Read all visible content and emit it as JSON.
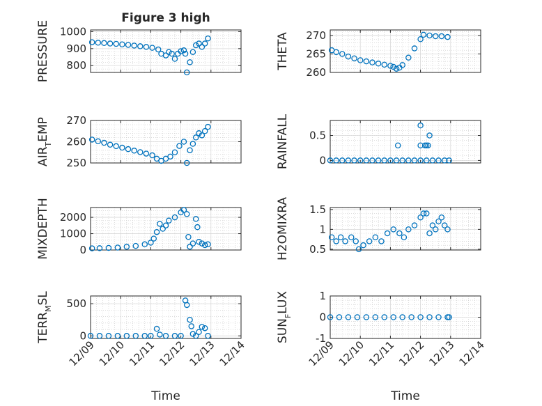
{
  "figure_title": "Figure 3 high",
  "colors": {
    "marker": "#0072BD",
    "axis": "#262626",
    "grid": "#c8c8c8"
  },
  "chart_data": [
    {
      "type": "scatter",
      "title": "Figure 3 high",
      "ylabel": {
        "base": "PRESSURE"
      },
      "xlabel": "",
      "xlim": [
        0,
        5
      ],
      "xticks": [
        0,
        1,
        2,
        3,
        4,
        5
      ],
      "xticklabels": [
        "12/09",
        "12/10",
        "12/11",
        "12/12",
        "12/13",
        "12/14"
      ],
      "ylim": [
        760,
        1010
      ],
      "yticks": [
        800,
        900,
        1000
      ],
      "yticklabels": [
        "800",
        "900",
        "1000"
      ],
      "grid": true,
      "points": [
        [
          0.05,
          938
        ],
        [
          0.25,
          935
        ],
        [
          0.45,
          933
        ],
        [
          0.65,
          930
        ],
        [
          0.85,
          928
        ],
        [
          1.05,
          925
        ],
        [
          1.25,
          922
        ],
        [
          1.45,
          918
        ],
        [
          1.65,
          914
        ],
        [
          1.85,
          910
        ],
        [
          2.05,
          905
        ],
        [
          2.25,
          895
        ],
        [
          2.35,
          870
        ],
        [
          2.5,
          860
        ],
        [
          2.6,
          880
        ],
        [
          2.7,
          870
        ],
        [
          2.8,
          840
        ],
        [
          2.9,
          870
        ],
        [
          3.0,
          885
        ],
        [
          3.1,
          890
        ],
        [
          3.15,
          870
        ],
        [
          3.2,
          760
        ],
        [
          3.3,
          820
        ],
        [
          3.4,
          880
        ],
        [
          3.5,
          920
        ],
        [
          3.6,
          930
        ],
        [
          3.7,
          910
        ],
        [
          3.8,
          930
        ],
        [
          3.9,
          960
        ]
      ]
    },
    {
      "type": "scatter",
      "title": "",
      "ylabel": {
        "base": "THETA"
      },
      "xlabel": "",
      "xlim": [
        0,
        5
      ],
      "xticks": [
        0,
        1,
        2,
        3,
        4,
        5
      ],
      "xticklabels": [
        "12/09",
        "12/10",
        "12/11",
        "12/12",
        "12/13",
        "12/14"
      ],
      "ylim": [
        260,
        271.5
      ],
      "yticks": [
        260,
        265,
        270
      ],
      "yticklabels": [
        "260",
        "265",
        "270"
      ],
      "grid": true,
      "points": [
        [
          0.05,
          266
        ],
        [
          0.2,
          265.5
        ],
        [
          0.4,
          265
        ],
        [
          0.6,
          264.3
        ],
        [
          0.8,
          263.8
        ],
        [
          1.0,
          263.3
        ],
        [
          1.2,
          263
        ],
        [
          1.4,
          262.7
        ],
        [
          1.6,
          262.4
        ],
        [
          1.8,
          262.1
        ],
        [
          2.0,
          261.8
        ],
        [
          2.1,
          261.5
        ],
        [
          2.2,
          261
        ],
        [
          2.3,
          261.3
        ],
        [
          2.4,
          262
        ],
        [
          2.6,
          264
        ],
        [
          2.8,
          266.5
        ],
        [
          3.0,
          269
        ],
        [
          3.1,
          270.2
        ],
        [
          3.3,
          270
        ],
        [
          3.5,
          269.8
        ],
        [
          3.7,
          269.8
        ],
        [
          3.9,
          269.6
        ]
      ]
    },
    {
      "type": "scatter",
      "title": "",
      "ylabel": {
        "base": "AIR",
        "sub": "T",
        "rest": "EMP"
      },
      "xlabel": "",
      "xlim": [
        0,
        5
      ],
      "xticks": [
        0,
        1,
        2,
        3,
        4,
        5
      ],
      "xticklabels": [
        "12/09",
        "12/10",
        "12/11",
        "12/12",
        "12/13",
        "12/14"
      ],
      "ylim": [
        250,
        270
      ],
      "yticks": [
        250,
        260,
        270
      ],
      "yticklabels": [
        "250",
        "260",
        "270"
      ],
      "grid": true,
      "points": [
        [
          0.05,
          261
        ],
        [
          0.25,
          260.2
        ],
        [
          0.45,
          259.5
        ],
        [
          0.65,
          258.6
        ],
        [
          0.85,
          257.9
        ],
        [
          1.05,
          257.2
        ],
        [
          1.25,
          256.5
        ],
        [
          1.45,
          255.8
        ],
        [
          1.65,
          255.1
        ],
        [
          1.85,
          254.4
        ],
        [
          2.05,
          253.6
        ],
        [
          2.2,
          252
        ],
        [
          2.35,
          251
        ],
        [
          2.5,
          252
        ],
        [
          2.65,
          253
        ],
        [
          2.8,
          255
        ],
        [
          2.95,
          258
        ],
        [
          3.1,
          260
        ],
        [
          3.2,
          250
        ],
        [
          3.3,
          256
        ],
        [
          3.4,
          259
        ],
        [
          3.5,
          262
        ],
        [
          3.6,
          264
        ],
        [
          3.7,
          263
        ],
        [
          3.8,
          265
        ],
        [
          3.9,
          267
        ]
      ]
    },
    {
      "type": "scatter",
      "title": "",
      "ylabel": {
        "base": "RAINFALL"
      },
      "xlabel": "",
      "xlim": [
        0,
        5
      ],
      "xticks": [
        0,
        1,
        2,
        3,
        4,
        5
      ],
      "xticklabels": [
        "12/09",
        "12/10",
        "12/11",
        "12/12",
        "12/13",
        "12/14"
      ],
      "ylim": [
        -0.05,
        0.8
      ],
      "yticks": [
        0,
        0.5
      ],
      "yticklabels": [
        "0",
        "0.5"
      ],
      "grid": true,
      "points": [
        [
          0.0,
          0
        ],
        [
          0.2,
          0
        ],
        [
          0.4,
          0
        ],
        [
          0.6,
          0
        ],
        [
          0.8,
          0
        ],
        [
          1.0,
          0
        ],
        [
          1.2,
          0
        ],
        [
          1.4,
          0
        ],
        [
          1.6,
          0
        ],
        [
          1.8,
          0
        ],
        [
          2.0,
          0
        ],
        [
          2.2,
          0
        ],
        [
          2.4,
          0
        ],
        [
          2.6,
          0
        ],
        [
          2.8,
          0
        ],
        [
          3.0,
          0
        ],
        [
          3.2,
          0
        ],
        [
          3.4,
          0
        ],
        [
          3.6,
          0
        ],
        [
          3.8,
          0
        ],
        [
          3.95,
          0
        ],
        [
          2.25,
          0.3
        ],
        [
          3.0,
          0.7
        ],
        [
          3.0,
          0.3
        ],
        [
          3.15,
          0.3
        ],
        [
          3.25,
          0.3
        ],
        [
          3.3,
          0.5
        ],
        [
          3.2,
          0.3
        ]
      ]
    },
    {
      "type": "scatter",
      "title": "",
      "ylabel": {
        "base": "MIXDEPTH"
      },
      "xlabel": "",
      "xlim": [
        0,
        5
      ],
      "xticks": [
        0,
        1,
        2,
        3,
        4,
        5
      ],
      "xticklabels": [
        "12/09",
        "12/10",
        "12/11",
        "12/12",
        "12/13",
        "12/14"
      ],
      "ylim": [
        0,
        2600
      ],
      "yticks": [
        0,
        1000,
        2000
      ],
      "yticklabels": [
        "0",
        "1000",
        "2000"
      ],
      "grid": true,
      "points": [
        [
          0.05,
          100
        ],
        [
          0.3,
          110
        ],
        [
          0.6,
          130
        ],
        [
          0.9,
          150
        ],
        [
          1.2,
          200
        ],
        [
          1.5,
          250
        ],
        [
          1.8,
          350
        ],
        [
          2.0,
          450
        ],
        [
          2.1,
          700
        ],
        [
          2.2,
          1100
        ],
        [
          2.3,
          1600
        ],
        [
          2.4,
          1300
        ],
        [
          2.5,
          1500
        ],
        [
          2.6,
          1800
        ],
        [
          2.8,
          2000
        ],
        [
          3.0,
          2300
        ],
        [
          3.1,
          2450
        ],
        [
          3.2,
          2200
        ],
        [
          3.25,
          800
        ],
        [
          3.3,
          200
        ],
        [
          3.4,
          400
        ],
        [
          3.5,
          1900
        ],
        [
          3.55,
          1400
        ],
        [
          3.6,
          500
        ],
        [
          3.7,
          400
        ],
        [
          3.8,
          300
        ],
        [
          3.9,
          350
        ]
      ]
    },
    {
      "type": "scatter",
      "title": "",
      "ylabel": {
        "base": "H2OMIXRA"
      },
      "xlabel": "",
      "xlim": [
        0,
        5
      ],
      "xticks": [
        0,
        1,
        2,
        3,
        4,
        5
      ],
      "xticklabels": [
        "12/09",
        "12/10",
        "12/11",
        "12/12",
        "12/13",
        "12/14"
      ],
      "ylim": [
        0.48,
        1.55
      ],
      "yticks": [
        0.5,
        1,
        1.5
      ],
      "yticklabels": [
        "0.5",
        "1",
        "1.5"
      ],
      "grid": true,
      "points": [
        [
          0.05,
          0.8
        ],
        [
          0.2,
          0.7
        ],
        [
          0.35,
          0.8
        ],
        [
          0.5,
          0.7
        ],
        [
          0.7,
          0.8
        ],
        [
          0.85,
          0.7
        ],
        [
          0.95,
          0.5
        ],
        [
          1.1,
          0.6
        ],
        [
          1.3,
          0.7
        ],
        [
          1.5,
          0.8
        ],
        [
          1.7,
          0.7
        ],
        [
          1.9,
          0.9
        ],
        [
          2.1,
          1.0
        ],
        [
          2.3,
          0.9
        ],
        [
          2.45,
          0.8
        ],
        [
          2.6,
          1.0
        ],
        [
          2.8,
          1.1
        ],
        [
          3.0,
          1.3
        ],
        [
          3.1,
          1.4
        ],
        [
          3.2,
          1.4
        ],
        [
          3.3,
          0.9
        ],
        [
          3.4,
          1.1
        ],
        [
          3.5,
          1.0
        ],
        [
          3.6,
          1.2
        ],
        [
          3.7,
          1.3
        ],
        [
          3.8,
          1.1
        ],
        [
          3.9,
          1.0
        ]
      ]
    },
    {
      "type": "scatter",
      "title": "",
      "ylabel": {
        "base": "TERR",
        "sub": "M",
        "rest": "SL"
      },
      "xlabel": "Time",
      "xlim": [
        0,
        5
      ],
      "xticks": [
        0,
        1,
        2,
        3,
        4,
        5
      ],
      "xticklabels": [
        "12/09",
        "12/10",
        "12/11",
        "12/12",
        "12/13",
        "12/14"
      ],
      "ylim": [
        -40,
        620
      ],
      "yticks": [
        0,
        500
      ],
      "yticklabels": [
        "0",
        "500"
      ],
      "grid": true,
      "points": [
        [
          0.0,
          0
        ],
        [
          0.3,
          0
        ],
        [
          0.6,
          0
        ],
        [
          0.9,
          0
        ],
        [
          1.2,
          0
        ],
        [
          1.5,
          0
        ],
        [
          1.8,
          0
        ],
        [
          2.0,
          0
        ],
        [
          2.2,
          110
        ],
        [
          2.3,
          20
        ],
        [
          2.5,
          0
        ],
        [
          2.8,
          0
        ],
        [
          3.0,
          0
        ],
        [
          3.15,
          550
        ],
        [
          3.2,
          480
        ],
        [
          3.3,
          250
        ],
        [
          3.35,
          150
        ],
        [
          3.4,
          30
        ],
        [
          3.5,
          0
        ],
        [
          3.6,
          60
        ],
        [
          3.7,
          140
        ],
        [
          3.8,
          120
        ],
        [
          3.9,
          0
        ]
      ]
    },
    {
      "type": "scatter",
      "title": "",
      "ylabel": {
        "base": "SUN",
        "sub": "F",
        "rest": "LUX"
      },
      "xlabel": "Time",
      "xlim": [
        0,
        5
      ],
      "xticks": [
        0,
        1,
        2,
        3,
        4,
        5
      ],
      "xticklabels": [
        "12/09",
        "12/10",
        "12/11",
        "12/12",
        "12/13",
        "12/14"
      ],
      "ylim": [
        -1,
        1
      ],
      "yticks": [
        -1,
        0,
        1
      ],
      "yticklabels": [
        "-1",
        "0",
        "1"
      ],
      "grid": true,
      "points": [
        [
          0.0,
          0
        ],
        [
          0.3,
          0
        ],
        [
          0.6,
          0
        ],
        [
          0.9,
          0
        ],
        [
          1.2,
          0
        ],
        [
          1.5,
          0
        ],
        [
          1.8,
          0
        ],
        [
          2.1,
          0
        ],
        [
          2.4,
          0
        ],
        [
          2.7,
          0
        ],
        [
          3.0,
          0
        ],
        [
          3.3,
          0
        ],
        [
          3.6,
          0
        ],
        [
          3.9,
          0
        ],
        [
          3.95,
          0
        ]
      ]
    }
  ]
}
